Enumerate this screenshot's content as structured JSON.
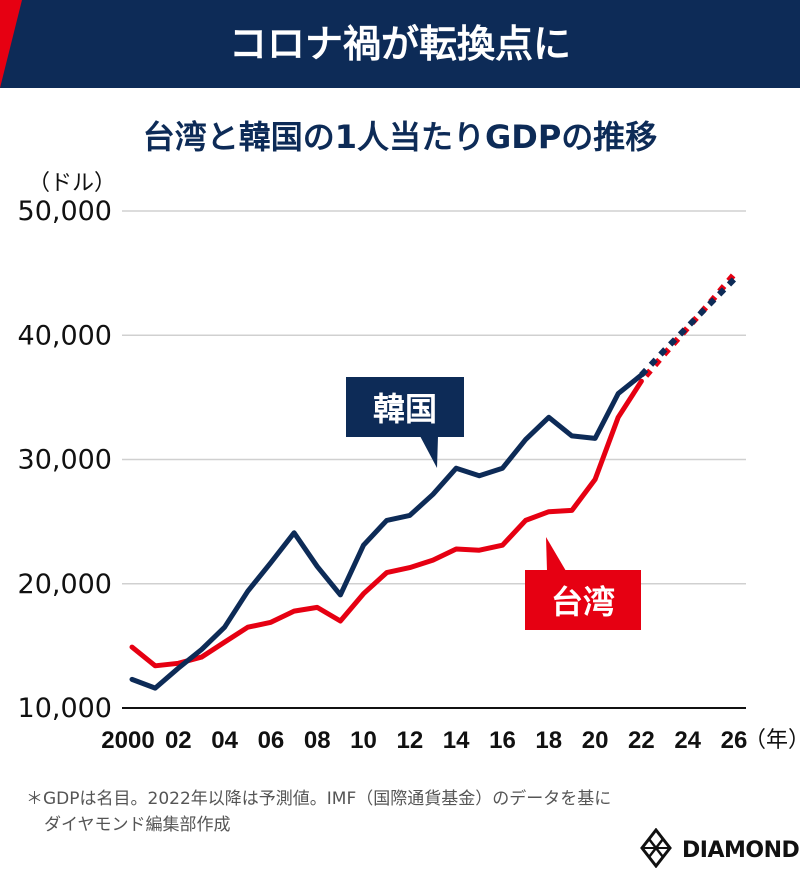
{
  "banner": {
    "title": "コロナ禍が転換点に"
  },
  "chart_data": {
    "type": "line",
    "title": "台湾と韓国の1人当たりGDPの推移",
    "ylabel": "（ドル）",
    "xlabel": "（年）",
    "ylim": [
      10000,
      50000
    ],
    "yticks": [
      10000,
      20000,
      30000,
      40000,
      50000
    ],
    "ytick_labels": [
      "10,000",
      "20,000",
      "30,000",
      "40,000",
      "50,000"
    ],
    "xlim": [
      2000,
      2026
    ],
    "xticks": [
      2000,
      2002,
      2004,
      2006,
      2008,
      2010,
      2012,
      2014,
      2016,
      2018,
      2020,
      2022,
      2024,
      2026
    ],
    "xtick_labels": [
      "2000",
      "02",
      "04",
      "06",
      "08",
      "10",
      "12",
      "14",
      "16",
      "18",
      "20",
      "22",
      "24",
      "26"
    ],
    "grid": true,
    "forecast_from": 2022,
    "series": [
      {
        "name": "韓国",
        "color": "#0d2b57",
        "x": [
          2000,
          2001,
          2002,
          2003,
          2004,
          2005,
          2006,
          2007,
          2008,
          2009,
          2010,
          2011,
          2012,
          2013,
          2014,
          2015,
          2016,
          2017,
          2018,
          2019,
          2020,
          2021,
          2022,
          2023,
          2024,
          2025,
          2026
        ],
        "values": [
          12300,
          11600,
          13200,
          14700,
          16500,
          19400,
          21700,
          24100,
          21400,
          19100,
          23100,
          25100,
          25500,
          27200,
          29300,
          28700,
          29300,
          31600,
          33400,
          31900,
          31700,
          35300,
          36800,
          38800,
          40700,
          42600,
          44500
        ]
      },
      {
        "name": "台湾",
        "color": "#e60012",
        "x": [
          2000,
          2001,
          2002,
          2003,
          2004,
          2005,
          2006,
          2007,
          2008,
          2009,
          2010,
          2011,
          2012,
          2013,
          2014,
          2015,
          2016,
          2017,
          2018,
          2019,
          2020,
          2021,
          2022,
          2023,
          2024,
          2025,
          2026
        ],
        "values": [
          14900,
          13400,
          13600,
          14100,
          15300,
          16500,
          16900,
          17800,
          18100,
          17000,
          19200,
          20900,
          21300,
          21900,
          22800,
          22700,
          23100,
          25100,
          25800,
          25900,
          28400,
          33400,
          36300,
          38500,
          40600,
          42700,
          44900
        ]
      }
    ]
  },
  "labels": {
    "korea": "韓国",
    "taiwan": "台湾"
  },
  "note": {
    "line1": "＊GDPは名目。2022年以降は予測値。IMF（国際通貨基金）のデータを基に",
    "line2": "ダイヤモンド編集部作成"
  },
  "logo": {
    "text": "DIAMOND"
  }
}
